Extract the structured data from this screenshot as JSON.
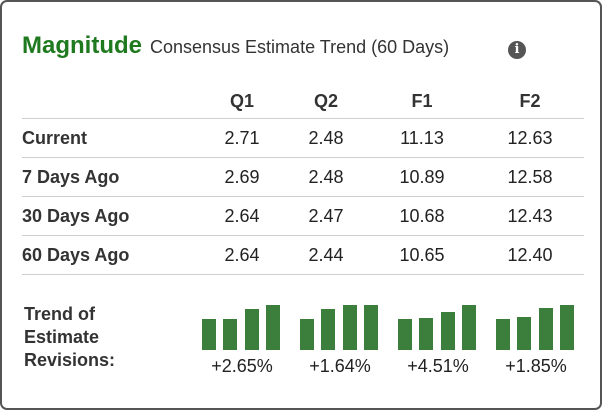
{
  "header": {
    "title": "Magnitude",
    "subtitle": "Consensus Estimate Trend (60 Days)",
    "info_icon": "info-icon"
  },
  "table": {
    "columns": [
      "Q1",
      "Q2",
      "F1",
      "F2"
    ],
    "rows": [
      {
        "label": "Current",
        "values": [
          "2.71",
          "2.48",
          "11.13",
          "12.63"
        ]
      },
      {
        "label": "7 Days Ago",
        "values": [
          "2.69",
          "2.48",
          "10.89",
          "12.58"
        ]
      },
      {
        "label": "30 Days Ago",
        "values": [
          "2.64",
          "2.47",
          "10.68",
          "12.43"
        ]
      },
      {
        "label": "60 Days Ago",
        "values": [
          "2.64",
          "2.44",
          "10.65",
          "12.40"
        ]
      }
    ]
  },
  "trend": {
    "label_lines": [
      "Trend of",
      "Estimate",
      "Revisions:"
    ],
    "bar_color": "#3c7f3c",
    "sparks": [
      {
        "pct": "+2.65%",
        "values": [
          2.64,
          2.64,
          2.69,
          2.71
        ]
      },
      {
        "pct": "+1.64%",
        "values": [
          2.44,
          2.47,
          2.48,
          2.48
        ]
      },
      {
        "pct": "+4.51%",
        "values": [
          10.65,
          10.68,
          10.89,
          11.13
        ]
      },
      {
        "pct": "+1.85%",
        "values": [
          12.4,
          12.43,
          12.58,
          12.63
        ]
      }
    ]
  },
  "colors": {
    "title_green": "#1f7a1f",
    "border": "#555555"
  }
}
